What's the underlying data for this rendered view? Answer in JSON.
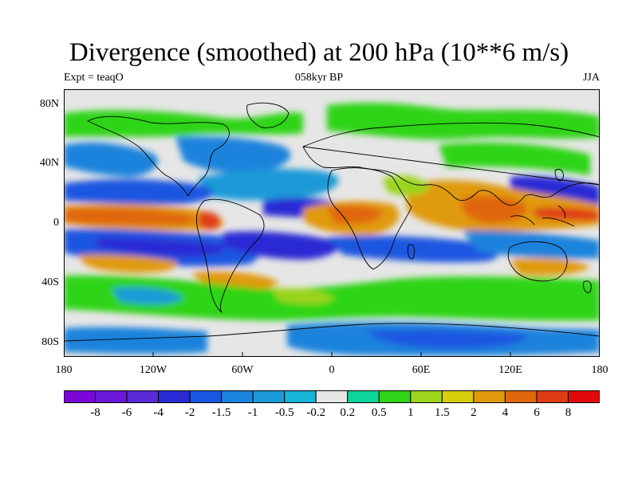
{
  "title": "Divergence (smoothed) at 200 hPa (10**6 m/s)",
  "subtitle_left": "Expt = teaqO",
  "subtitle_center": "058kyr BP",
  "subtitle_right": "JJA",
  "lat_labels": [
    "80N",
    "40N",
    "0",
    "40S",
    "80S"
  ],
  "lon_labels": [
    "180",
    "120W",
    "60W",
    "0",
    "60E",
    "120E",
    "180"
  ],
  "colorbar": {
    "tick_labels": [
      "-8",
      "-6",
      "-4",
      "-2",
      "-1.5",
      "-1",
      "-0.5",
      "-0.2",
      "0.2",
      "0.5",
      "1",
      "1.5",
      "2",
      "4",
      "6",
      "8"
    ],
    "colors": [
      "#7b06d8",
      "#6a18d6",
      "#5a2ad4",
      "#2a2ad4",
      "#1a57e0",
      "#1a83dc",
      "#1c9ad8",
      "#16b5d8",
      "#e6e6e6",
      "#0fd49a",
      "#2fd418",
      "#9bd41b",
      "#d8cf0c",
      "#e09a0c",
      "#e0660c",
      "#e03c14",
      "#e00a0a"
    ]
  }
}
